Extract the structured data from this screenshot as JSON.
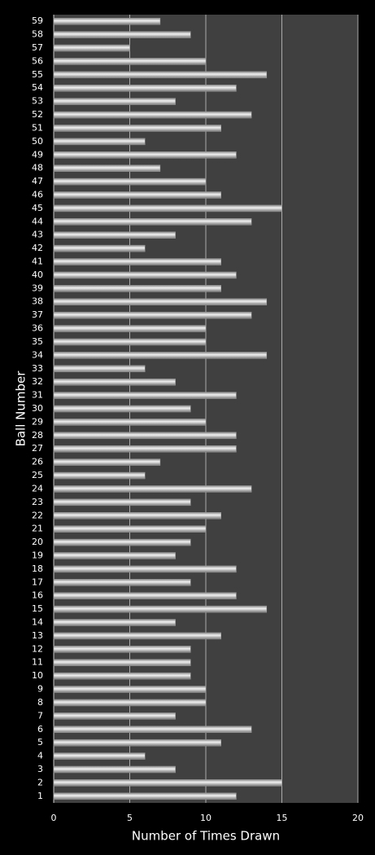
{
  "chart_data": {
    "type": "bar",
    "orientation": "horizontal",
    "x_label": "Number of Times Drawn",
    "y_label": "Ball Number",
    "categories": [
      "1",
      "2",
      "3",
      "4",
      "5",
      "6",
      "7",
      "8",
      "9",
      "10",
      "11",
      "12",
      "13",
      "14",
      "15",
      "16",
      "17",
      "18",
      "19",
      "20",
      "21",
      "22",
      "23",
      "24",
      "25",
      "26",
      "27",
      "28",
      "29",
      "30",
      "31",
      "32",
      "33",
      "34",
      "35",
      "36",
      "37",
      "38",
      "39",
      "40",
      "41",
      "42",
      "43",
      "44",
      "45",
      "46",
      "47",
      "48",
      "49",
      "50",
      "51",
      "52",
      "53",
      "54",
      "55",
      "56",
      "57",
      "58",
      "59"
    ],
    "values": [
      12,
      15,
      8,
      6,
      11,
      13,
      8,
      10,
      10,
      9,
      9,
      9,
      11,
      8,
      14,
      12,
      9,
      12,
      8,
      9,
      10,
      11,
      9,
      13,
      6,
      7,
      12,
      12,
      10,
      9,
      12,
      8,
      6,
      14,
      10,
      10,
      13,
      14,
      11,
      12,
      11,
      6,
      8,
      13,
      15,
      11,
      10,
      7,
      12,
      6,
      11,
      13,
      8,
      12,
      14,
      10,
      5,
      9,
      7
    ],
    "color": "#f2f2f2",
    "xlim": [
      0,
      20
    ],
    "xticks": [
      0,
      5,
      10,
      15,
      20
    ],
    "grid": true
  }
}
